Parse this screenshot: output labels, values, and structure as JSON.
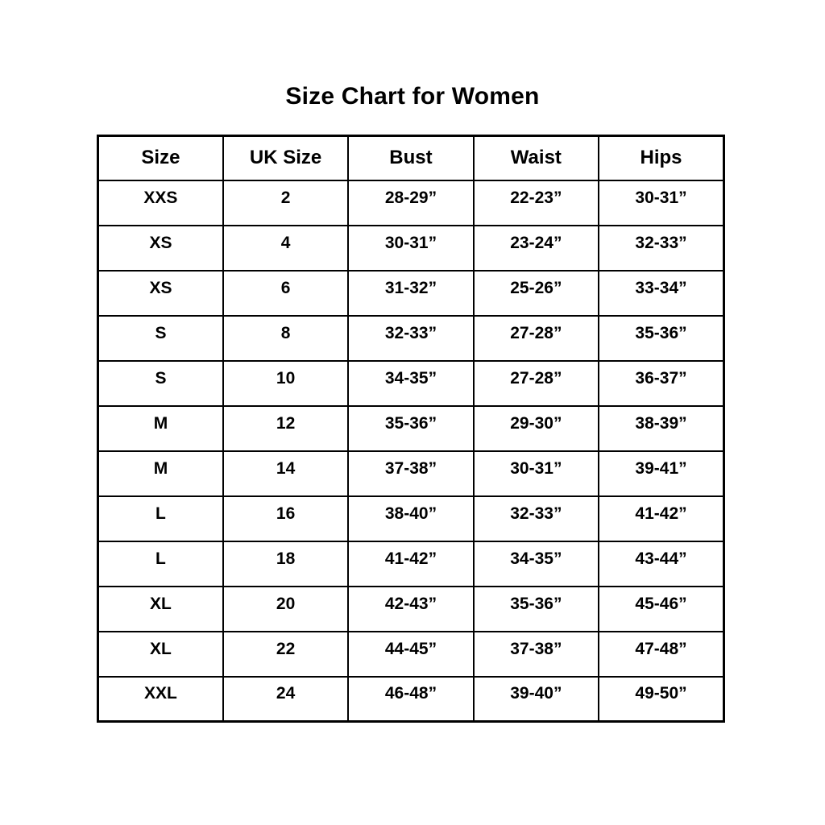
{
  "chart_data": {
    "type": "table",
    "title": "Size Chart for Women",
    "columns": [
      "Size",
      "UK Size",
      "Bust",
      "Waist",
      "Hips"
    ],
    "rows": [
      [
        "XXS",
        "2",
        "28-29”",
        "22-23”",
        "30-31”"
      ],
      [
        "XS",
        "4",
        "30-31”",
        "23-24”",
        "32-33”"
      ],
      [
        "XS",
        "6",
        "31-32”",
        "25-26”",
        "33-34”"
      ],
      [
        "S",
        "8",
        "32-33”",
        "27-28”",
        "35-36”"
      ],
      [
        "S",
        "10",
        "34-35”",
        "27-28”",
        "36-37”"
      ],
      [
        "M",
        "12",
        "35-36”",
        "29-30”",
        "38-39”"
      ],
      [
        "M",
        "14",
        "37-38”",
        "30-31”",
        "39-41”"
      ],
      [
        "L",
        "16",
        "38-40”",
        "32-33”",
        "41-42”"
      ],
      [
        "L",
        "18",
        "41-42”",
        "34-35”",
        "43-44”"
      ],
      [
        "XL",
        "20",
        "42-43”",
        "35-36”",
        "45-46”"
      ],
      [
        "XL",
        "22",
        "44-45”",
        "37-38”",
        "47-48”"
      ],
      [
        "XXL",
        "24",
        "46-48”",
        "39-40”",
        "49-50”"
      ]
    ],
    "layout_hints": {
      "grid": "all-borders",
      "header_row": true,
      "text_align": "center"
    }
  },
  "colors": {
    "background": "#ffffff",
    "text": "#000000",
    "border": "#000000"
  }
}
